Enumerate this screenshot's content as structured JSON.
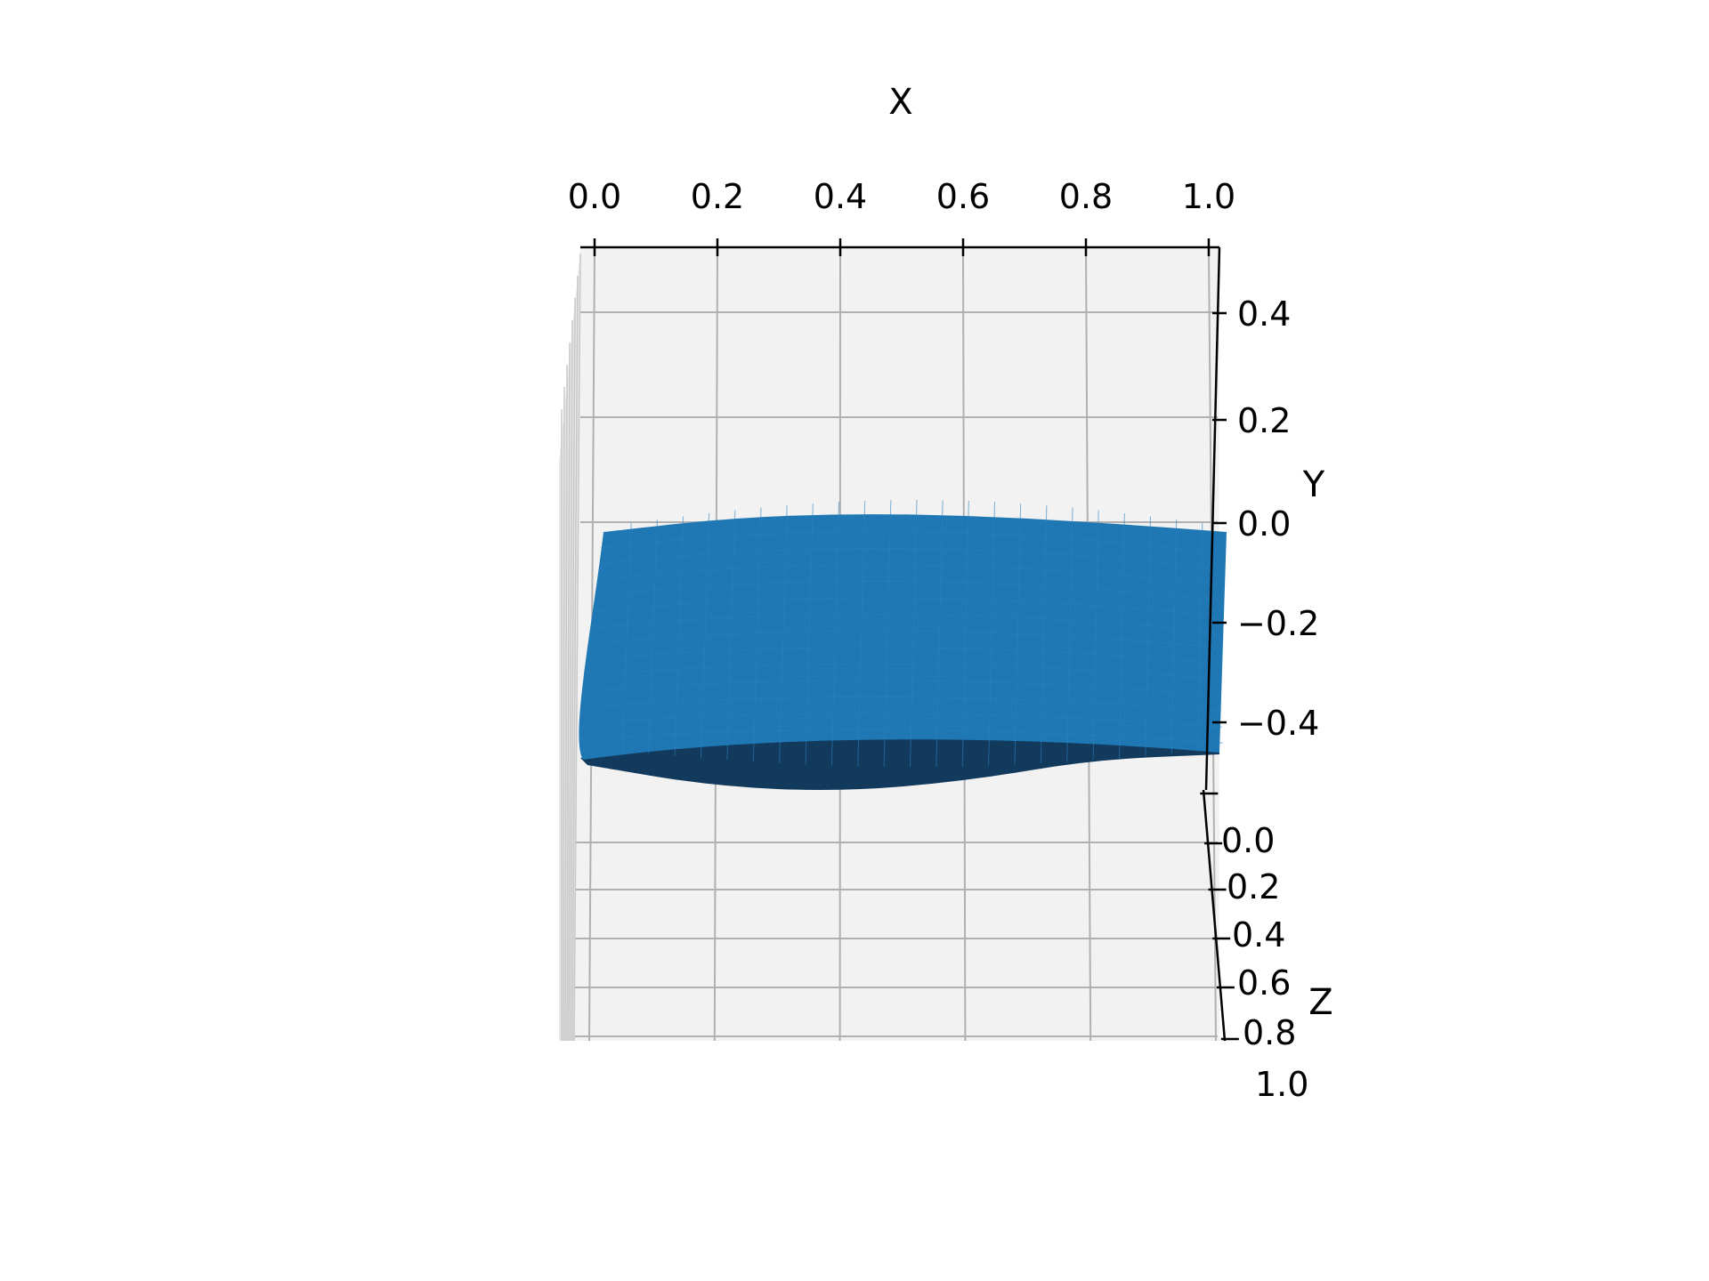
{
  "chart_data": {
    "type": "surface",
    "title": "",
    "view": "3d-top-down",
    "grid": true,
    "pane_color": "#f2f2f2",
    "surface_color": "#1f77b4",
    "shadow_color": "#123a5c",
    "axes": {
      "x": {
        "label": "X",
        "range": [
          0.0,
          1.0
        ],
        "ticks": [
          "0.0",
          "0.2",
          "0.4",
          "0.6",
          "0.8",
          "1.0"
        ]
      },
      "y": {
        "label": "Y",
        "range": [
          -0.5,
          0.5
        ],
        "ticks": [
          "−0.4",
          "−0.2",
          "0.0",
          "0.2",
          "0.4"
        ]
      },
      "z": {
        "label": "Z",
        "range": [
          0.0,
          1.0
        ],
        "ticks": [
          "0.0",
          "0.2",
          "0.4",
          "0.6",
          "0.8",
          "1.0"
        ]
      }
    },
    "surface": {
      "description_fields": [
        "x",
        "y_top_edge",
        "y_bottom_edge"
      ],
      "x": [
        0.0,
        0.2,
        0.4,
        0.6,
        0.8,
        1.0
      ],
      "y_top_edge": [
        0.0,
        0.03,
        0.04,
        0.035,
        0.02,
        0.0
      ],
      "y_bottom_edge": [
        -0.45,
        -0.49,
        -0.5,
        -0.48,
        -0.44,
        -0.43
      ]
    }
  }
}
